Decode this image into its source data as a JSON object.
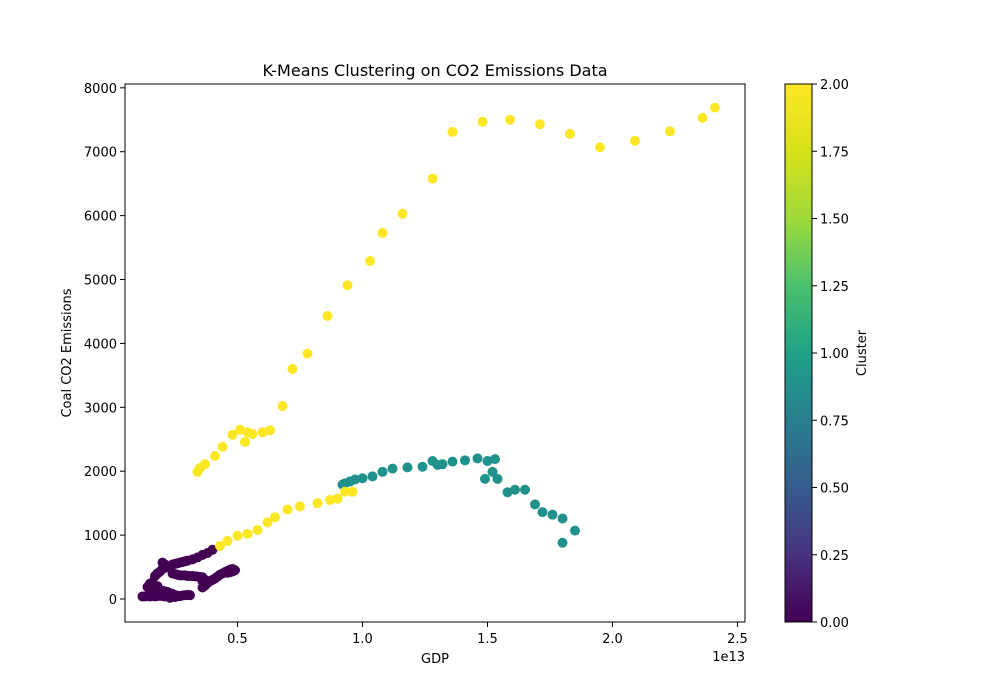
{
  "chart_data": {
    "type": "scatter",
    "title": "K-Means Clustering on CO2 Emissions Data",
    "xlabel": "GDP",
    "ylabel": "Coal CO2 Emissions",
    "x_offset_text": "1e13",
    "x_ticks": [
      "0.5",
      "1.0",
      "1.5",
      "2.0",
      "2.5"
    ],
    "x_tick_values": [
      0.5,
      1.0,
      1.5,
      2.0,
      2.5
    ],
    "y_ticks": [
      "0",
      "1000",
      "2000",
      "3000",
      "4000",
      "5000",
      "6000",
      "7000",
      "8000"
    ],
    "y_tick_values": [
      0,
      1000,
      2000,
      3000,
      4000,
      5000,
      6000,
      7000,
      8000
    ],
    "xlim": [
      0.05,
      2.53
    ],
    "ylim": [
      -360,
      8060
    ],
    "grid": false,
    "colorbar": {
      "label": "Cluster",
      "range": [
        0.0,
        2.0
      ],
      "ticks": [
        "0.00",
        "0.25",
        "0.50",
        "0.75",
        "1.00",
        "1.25",
        "1.50",
        "1.75",
        "2.00"
      ],
      "tick_values": [
        0,
        0.25,
        0.5,
        0.75,
        1.0,
        1.25,
        1.5,
        1.75,
        2.0
      ],
      "colormap": "viridis"
    },
    "cluster_colors": {
      "0": "#440154",
      "1": "#21918c",
      "2": "#fde725"
    },
    "series": [
      {
        "cluster": 0,
        "points": [
          [
            0.12,
            40
          ],
          [
            0.13,
            40
          ],
          [
            0.14,
            45
          ],
          [
            0.15,
            40
          ],
          [
            0.16,
            50
          ],
          [
            0.17,
            40
          ],
          [
            0.18,
            45
          ],
          [
            0.19,
            50
          ],
          [
            0.2,
            45
          ],
          [
            0.21,
            40
          ],
          [
            0.22,
            50
          ],
          [
            0.23,
            55
          ],
          [
            0.24,
            45
          ],
          [
            0.25,
            40
          ],
          [
            0.26,
            50
          ],
          [
            0.27,
            45
          ],
          [
            0.28,
            55
          ],
          [
            0.29,
            60
          ],
          [
            0.3,
            65
          ],
          [
            0.31,
            60
          ],
          [
            0.15,
            120
          ],
          [
            0.16,
            140
          ],
          [
            0.17,
            130
          ],
          [
            0.18,
            110
          ],
          [
            0.19,
            140
          ],
          [
            0.2,
            130
          ],
          [
            0.21,
            120
          ],
          [
            0.22,
            110
          ],
          [
            0.23,
            90
          ],
          [
            0.24,
            80
          ],
          [
            0.25,
            60
          ],
          [
            0.26,
            50
          ],
          [
            0.27,
            45
          ],
          [
            0.23,
            20
          ],
          [
            0.25,
            30
          ],
          [
            0.14,
            190
          ],
          [
            0.15,
            240
          ],
          [
            0.16,
            260
          ],
          [
            0.17,
            210
          ],
          [
            0.18,
            200
          ],
          [
            0.17,
            360
          ],
          [
            0.18,
            400
          ],
          [
            0.19,
            430
          ],
          [
            0.2,
            470
          ],
          [
            0.21,
            490
          ],
          [
            0.22,
            500
          ],
          [
            0.23,
            520
          ],
          [
            0.24,
            540
          ],
          [
            0.25,
            550
          ],
          [
            0.26,
            560
          ],
          [
            0.27,
            570
          ],
          [
            0.28,
            580
          ],
          [
            0.29,
            590
          ],
          [
            0.3,
            600
          ],
          [
            0.32,
            620
          ],
          [
            0.34,
            650
          ],
          [
            0.36,
            690
          ],
          [
            0.38,
            720
          ],
          [
            0.4,
            770
          ],
          [
            0.2,
            570
          ],
          [
            0.21,
            540
          ],
          [
            0.22,
            510
          ],
          [
            0.23,
            500
          ],
          [
            0.24,
            400
          ],
          [
            0.25,
            390
          ],
          [
            0.26,
            380
          ],
          [
            0.27,
            370
          ],
          [
            0.28,
            370
          ],
          [
            0.29,
            370
          ],
          [
            0.3,
            360
          ],
          [
            0.31,
            360
          ],
          [
            0.32,
            360
          ],
          [
            0.33,
            355
          ],
          [
            0.34,
            350
          ],
          [
            0.35,
            345
          ],
          [
            0.36,
            340
          ],
          [
            0.37,
            300
          ],
          [
            0.36,
            280
          ],
          [
            0.37,
            260
          ],
          [
            0.38,
            250
          ],
          [
            0.39,
            280
          ],
          [
            0.4,
            300
          ],
          [
            0.41,
            320
          ],
          [
            0.42,
            350
          ],
          [
            0.43,
            380
          ],
          [
            0.44,
            400
          ],
          [
            0.45,
            420
          ],
          [
            0.46,
            440
          ],
          [
            0.47,
            460
          ],
          [
            0.48,
            470
          ],
          [
            0.49,
            450
          ],
          [
            0.48,
            430
          ],
          [
            0.47,
            420
          ],
          [
            0.46,
            410
          ],
          [
            0.36,
            180
          ],
          [
            0.37,
            210
          ]
        ]
      },
      {
        "cluster": 1,
        "points": [
          [
            0.92,
            1790
          ],
          [
            0.93,
            1810
          ],
          [
            0.95,
            1840
          ],
          [
            0.97,
            1870
          ],
          [
            1.0,
            1890
          ],
          [
            1.04,
            1920
          ],
          [
            1.08,
            1990
          ],
          [
            1.12,
            2040
          ],
          [
            1.18,
            2060
          ],
          [
            1.24,
            2070
          ],
          [
            1.28,
            2160
          ],
          [
            1.3,
            2100
          ],
          [
            1.32,
            2110
          ],
          [
            1.36,
            2150
          ],
          [
            1.41,
            2170
          ],
          [
            1.46,
            2200
          ],
          [
            1.5,
            2160
          ],
          [
            1.53,
            2190
          ],
          [
            1.52,
            1990
          ],
          [
            1.54,
            1880
          ],
          [
            1.49,
            1880
          ],
          [
            1.58,
            1670
          ],
          [
            1.61,
            1710
          ],
          [
            1.65,
            1710
          ],
          [
            1.69,
            1480
          ],
          [
            1.72,
            1360
          ],
          [
            1.76,
            1320
          ],
          [
            1.8,
            1260
          ],
          [
            1.85,
            1070
          ],
          [
            1.8,
            880
          ]
        ]
      },
      {
        "cluster": 2,
        "points": [
          [
            0.34,
            1990
          ],
          [
            0.35,
            2050
          ],
          [
            0.37,
            2110
          ],
          [
            0.41,
            2240
          ],
          [
            0.44,
            2380
          ],
          [
            0.48,
            2570
          ],
          [
            0.51,
            2650
          ],
          [
            0.53,
            2460
          ],
          [
            0.54,
            2610
          ],
          [
            0.56,
            2580
          ],
          [
            0.6,
            2610
          ],
          [
            0.63,
            2640
          ],
          [
            0.68,
            3020
          ],
          [
            0.72,
            3600
          ],
          [
            0.78,
            3840
          ],
          [
            0.86,
            4430
          ],
          [
            0.94,
            4910
          ],
          [
            1.03,
            5290
          ],
          [
            1.08,
            5730
          ],
          [
            1.16,
            6030
          ],
          [
            1.28,
            6580
          ],
          [
            1.36,
            7310
          ],
          [
            1.48,
            7470
          ],
          [
            1.59,
            7500
          ],
          [
            1.71,
            7430
          ],
          [
            1.83,
            7280
          ],
          [
            1.95,
            7070
          ],
          [
            2.09,
            7170
          ],
          [
            2.23,
            7320
          ],
          [
            2.36,
            7530
          ],
          [
            2.41,
            7690
          ],
          [
            0.43,
            830
          ],
          [
            0.46,
            910
          ],
          [
            0.5,
            990
          ],
          [
            0.54,
            1020
          ],
          [
            0.58,
            1080
          ],
          [
            0.62,
            1200
          ],
          [
            0.65,
            1280
          ],
          [
            0.7,
            1400
          ],
          [
            0.75,
            1450
          ],
          [
            0.82,
            1500
          ],
          [
            0.87,
            1550
          ],
          [
            0.9,
            1570
          ],
          [
            0.93,
            1680
          ],
          [
            0.96,
            1680
          ]
        ]
      }
    ]
  }
}
